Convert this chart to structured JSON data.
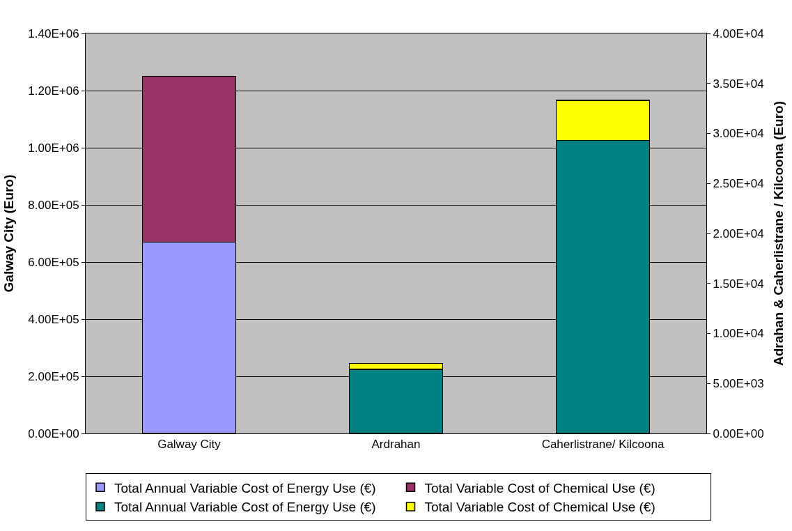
{
  "chart_data": {
    "type": "bar",
    "stacked": true,
    "categories": [
      "Galway City",
      "Ardrahan",
      "Caherlistrane/ Kilcoona"
    ],
    "ylabel": "Galway City (Euro)",
    "y2label": "Adrahan & Caherlistrane / Kilcoona (Euro)",
    "ylim": [
      0,
      1400000
    ],
    "yticks": [
      {
        "value": 0,
        "label": "0.00E+00"
      },
      {
        "value": 200000,
        "label": "2.00E+05"
      },
      {
        "value": 400000,
        "label": "4.00E+05"
      },
      {
        "value": 600000,
        "label": "6.00E+05"
      },
      {
        "value": 800000,
        "label": "8.00E+05"
      },
      {
        "value": 1000000,
        "label": "1.00E+06"
      },
      {
        "value": 1200000,
        "label": "1.20E+06"
      },
      {
        "value": 1400000,
        "label": "1.40E+06"
      }
    ],
    "y2lim": [
      0,
      40000
    ],
    "y2ticks": [
      {
        "value": 0,
        "label": "0.00E+00"
      },
      {
        "value": 5000,
        "label": "5.00E+03"
      },
      {
        "value": 10000,
        "label": "1.00E+04"
      },
      {
        "value": 15000,
        "label": "1.50E+04"
      },
      {
        "value": 20000,
        "label": "2.00E+04"
      },
      {
        "value": 25000,
        "label": "2.50E+04"
      },
      {
        "value": 30000,
        "label": "3.00E+04"
      },
      {
        "value": 35000,
        "label": "3.50E+04"
      },
      {
        "value": 40000,
        "label": "4.00E+04"
      }
    ],
    "grid": "y",
    "legend": "bottom",
    "series": [
      {
        "name": "Total Annual Variable Cost of Energy Use (€)",
        "color": "#9999ff",
        "values": [
          670000,
          null,
          null
        ]
      },
      {
        "name": "Total Variable Cost of Chemical Use (€)",
        "color": "#993366",
        "values": [
          580000,
          null,
          null
        ]
      },
      {
        "name": "Total Annual Variable Cost of Energy Use (€)",
        "color": "#008080",
        "axis": "y2",
        "values": [
          null,
          6400,
          29300
        ]
      },
      {
        "name": "Total Variable Cost of Chemical Use (€)",
        "color": "#ffff00",
        "axis": "y2",
        "values": [
          null,
          600,
          4000
        ]
      }
    ]
  }
}
